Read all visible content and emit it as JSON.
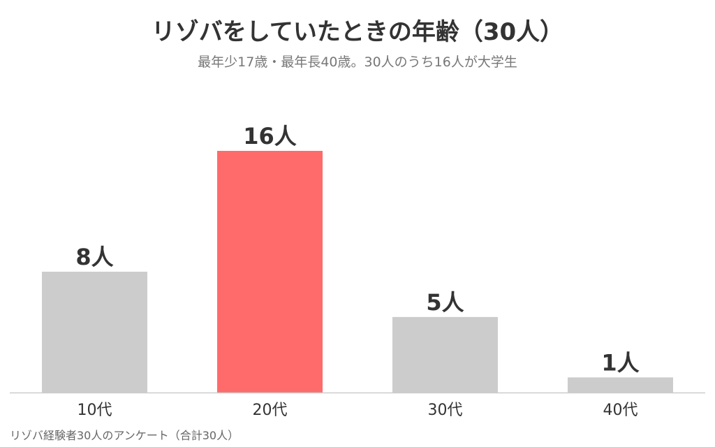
{
  "chart_data": {
    "type": "bar",
    "title": "リゾバをしていたときの年齢（30人）",
    "subtitle": "最年少17歳・最年長40歳。30人のうち16人が大学生",
    "categories": [
      "10代",
      "20代",
      "30代",
      "40代"
    ],
    "values": [
      8,
      16,
      5,
      1
    ],
    "value_labels": [
      "8人",
      "16人",
      "5人",
      "1人"
    ],
    "colors": [
      "#cccccc",
      "#ff6b6b",
      "#cccccc",
      "#cccccc"
    ],
    "ylim": [
      0,
      16
    ],
    "grid": false,
    "legend": "none",
    "footnote": "リゾバ経験者30人のアンケート（合計30人）"
  }
}
